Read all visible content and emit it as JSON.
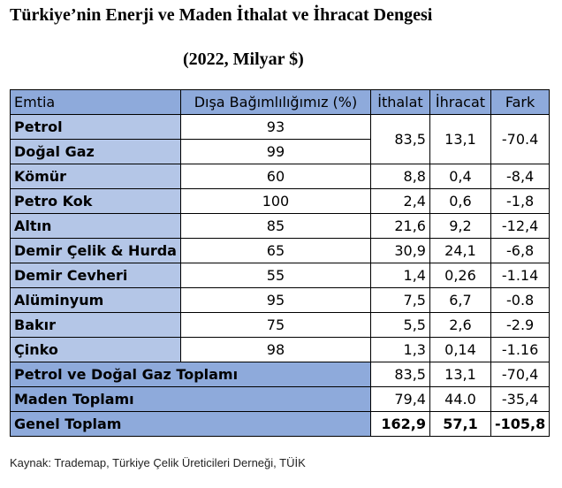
{
  "title": "Türkiye’nin Enerji ve Maden İthalat ve İhracat Dengesi",
  "subtitle": "(2022, Milyar $)",
  "table": {
    "headers": [
      "Emtia",
      "Dışa Bağımlılığımız (%)",
      "İthalat",
      "İhracat",
      "Fark"
    ],
    "rows": [
      {
        "name": "Petrol",
        "dep": "93"
      },
      {
        "name": "Doğal Gaz",
        "dep": "99"
      },
      {
        "name": "Kömür",
        "dep": "60",
        "imp": "8,8",
        "exp": "0,4",
        "diff": "-8,4"
      },
      {
        "name": "Petro Kok",
        "dep": "100",
        "imp": "2,4",
        "exp": "0,6",
        "diff": "-1,8"
      },
      {
        "name": "Altın",
        "dep": "85",
        "imp": "21,6",
        "exp": "9,2",
        "diff": "-12,4"
      },
      {
        "name": "Demir Çelik & Hurda",
        "dep": "65",
        "imp": "30,9",
        "exp": "24,1",
        "diff": "-6,8"
      },
      {
        "name": "Demir Cevheri",
        "dep": "55",
        "imp": "1,4",
        "exp": "0,26",
        "diff": "-1.14"
      },
      {
        "name": "Alüminyum",
        "dep": "95",
        "imp": "7,5",
        "exp": "6,7",
        "diff": "-0.8"
      },
      {
        "name": "Bakır",
        "dep": "75",
        "imp": "5,5",
        "exp": "2,6",
        "diff": "-2.9"
      },
      {
        "name": "Çinko",
        "dep": "98",
        "imp": "1,3",
        "exp": "0,14",
        "diff": "-1.16"
      }
    ],
    "petrol_gas_merged": {
      "imp": "83,5",
      "exp": "13,1",
      "diff": "-70.4"
    },
    "totals": [
      {
        "name": "Petrol ve Doğal Gaz Toplamı",
        "imp": "83,5",
        "exp": "13,1",
        "diff": "-70,4"
      },
      {
        "name": "Maden Toplamı",
        "imp": "79,4",
        "exp": "44.0",
        "diff": "-35,4"
      },
      {
        "name": "Genel Toplam",
        "imp": "162,9",
        "exp": "57,1",
        "diff": "-105,8"
      }
    ]
  },
  "source": "Kaynak: Trademap, Türkiye Çelik Üreticileri Derneği, TÜİK"
}
